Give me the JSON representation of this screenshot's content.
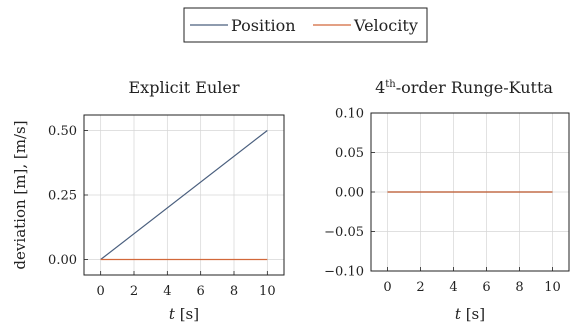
{
  "legend": {
    "entries": [
      {
        "label": "Position",
        "color": "#4a5f7e"
      },
      {
        "label": "Velocity",
        "color": "#d2683a"
      }
    ]
  },
  "chart_data": [
    {
      "type": "line",
      "title": "Explicit Euler",
      "xlabel": "t [s]",
      "ylabel": "deviation [m], [m/s]",
      "xlim": [
        -1,
        11
      ],
      "ylim": [
        -0.06,
        0.56
      ],
      "xticks": [
        0,
        2,
        4,
        6,
        8,
        10
      ],
      "xtick_labels": [
        "0",
        "2",
        "4",
        "6",
        "8",
        "10"
      ],
      "yticks": [
        0,
        0.25,
        0.5
      ],
      "ytick_labels": [
        "0.00",
        "0.25",
        "0.50"
      ],
      "grid": true,
      "series": [
        {
          "name": "Position",
          "color": "#4a5f7e",
          "x": [
            0,
            10
          ],
          "y": [
            0,
            0.5
          ]
        },
        {
          "name": "Velocity",
          "color": "#d2683a",
          "x": [
            0,
            10
          ],
          "y": [
            0,
            0
          ]
        }
      ]
    },
    {
      "type": "line",
      "title_main": "4",
      "title_sup": "th",
      "title_rest": "-order Runge-Kutta",
      "xlabel": "t [s]",
      "ylabel": "",
      "xlim": [
        -1,
        11
      ],
      "ylim": [
        -0.1,
        0.1
      ],
      "xticks": [
        0,
        2,
        4,
        6,
        8,
        10
      ],
      "xtick_labels": [
        "0",
        "2",
        "4",
        "6",
        "8",
        "10"
      ],
      "yticks": [
        -0.1,
        -0.05,
        0,
        0.05,
        0.1
      ],
      "ytick_labels": [
        "−0.10",
        "−0.05",
        "0.00",
        "0.05",
        "0.10"
      ],
      "grid": true,
      "series": [
        {
          "name": "Position",
          "color": "#4a5f7e",
          "x": [
            0,
            10
          ],
          "y": [
            0,
            0
          ]
        },
        {
          "name": "Velocity",
          "color": "#d2683a",
          "x": [
            0,
            10
          ],
          "y": [
            0,
            0
          ]
        }
      ]
    }
  ]
}
